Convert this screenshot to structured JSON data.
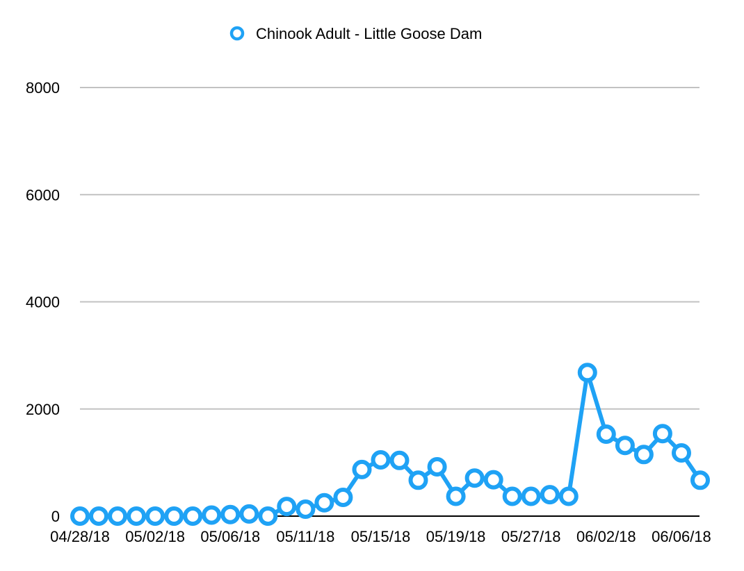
{
  "chart_data": {
    "type": "line",
    "title": "",
    "xlabel": "",
    "ylabel": "",
    "legend_position": "top-center",
    "grid": true,
    "ylim": [
      0,
      8000
    ],
    "y_ticks": [
      0,
      2000,
      4000,
      6000,
      8000
    ],
    "y_tick_labels": [
      "0",
      "2000",
      "4000",
      "6000",
      "8000"
    ],
    "x_tick_labels": [
      {
        "index": 0,
        "label": "04/28/18"
      },
      {
        "index": 4,
        "label": "05/02/18"
      },
      {
        "index": 8,
        "label": "05/06/18"
      },
      {
        "index": 12,
        "label": "05/11/18"
      },
      {
        "index": 16,
        "label": "05/15/18"
      },
      {
        "index": 20,
        "label": "05/19/18"
      },
      {
        "index": 24,
        "label": "05/27/18"
      },
      {
        "index": 28,
        "label": "06/02/18"
      },
      {
        "index": 32,
        "label": "06/06/18"
      }
    ],
    "series": [
      {
        "name": "Chinook Adult - Little Goose Dam",
        "color": "#1fa2f5",
        "values": [
          0,
          0,
          0,
          0,
          0,
          0,
          0,
          20,
          30,
          40,
          0,
          180,
          130,
          250,
          350,
          870,
          1050,
          1040,
          670,
          920,
          370,
          710,
          680,
          370,
          370,
          400,
          370,
          2680,
          1530,
          1320,
          1150,
          1540,
          1180,
          670
        ]
      }
    ]
  }
}
